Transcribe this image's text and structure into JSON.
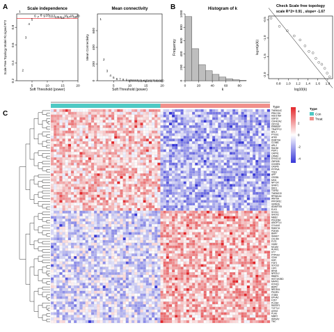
{
  "panel_letters": [
    "A",
    "B",
    "C"
  ],
  "chart_data": [
    {
      "type": "scatter",
      "title": "Scale independence",
      "xlabel": "Soft Threshold (power)",
      "ylabel": "Scale Free Topology Model Fit,signed R^2",
      "xlim": [
        0,
        20
      ],
      "ylim": [
        0.2,
        0.95
      ],
      "xticks": [
        "5",
        "10",
        "15",
        "20"
      ],
      "yticks": [
        "0.2",
        "0.4",
        "0.6",
        "0.8"
      ],
      "reference_line": 0.9,
      "marker_color": "#e6141b",
      "points": [
        {
          "x": 1,
          "y": 0.98
        },
        {
          "x": 2,
          "y": 0.32
        },
        {
          "x": 3,
          "y": 0.69
        },
        {
          "x": 4,
          "y": 0.84
        },
        {
          "x": 5,
          "y": 0.89
        },
        {
          "x": 6,
          "y": 0.93
        },
        {
          "x": 7,
          "y": 0.92
        },
        {
          "x": 8,
          "y": 0.94
        },
        {
          "x": 9,
          "y": 0.93
        },
        {
          "x": 10,
          "y": 0.94
        },
        {
          "x": 11,
          "y": 0.93
        },
        {
          "x": 12,
          "y": 0.93
        },
        {
          "x": 13,
          "y": 0.92
        },
        {
          "x": 14,
          "y": 0.92
        },
        {
          "x": 15,
          "y": 0.91
        },
        {
          "x": 16,
          "y": 0.93
        },
        {
          "x": 17,
          "y": 0.92
        },
        {
          "x": 18,
          "y": 0.93
        },
        {
          "x": 19,
          "y": 0.92
        },
        {
          "x": 20,
          "y": 0.93
        }
      ]
    },
    {
      "type": "scatter",
      "title": "Mean connectivity",
      "xlabel": "Soft Threshold (power)",
      "ylabel": "Mean Connectivity",
      "xlim": [
        0,
        20
      ],
      "ylim": [
        0,
        800
      ],
      "xticks": [
        "5",
        "10",
        "15",
        "20"
      ],
      "yticks": [
        "0",
        "200",
        "400",
        "600"
      ],
      "marker_color": "#e6141b",
      "points": [
        {
          "x": 1,
          "y": 740
        },
        {
          "x": 2,
          "y": 260
        },
        {
          "x": 3,
          "y": 120
        },
        {
          "x": 4,
          "y": 68
        },
        {
          "x": 5,
          "y": 40
        },
        {
          "x": 6,
          "y": 27
        },
        {
          "x": 7,
          "y": 20
        },
        {
          "x": 8,
          "y": 15
        },
        {
          "x": 9,
          "y": 12
        },
        {
          "x": 10,
          "y": 10
        },
        {
          "x": 11,
          "y": 8
        },
        {
          "x": 12,
          "y": 7
        },
        {
          "x": 13,
          "y": 6
        },
        {
          "x": 14,
          "y": 5
        },
        {
          "x": 15,
          "y": 5
        },
        {
          "x": 16,
          "y": 4
        },
        {
          "x": 17,
          "y": 4
        },
        {
          "x": 18,
          "y": 3
        },
        {
          "x": 19,
          "y": 3
        },
        {
          "x": 20,
          "y": 3
        }
      ]
    },
    {
      "type": "bar",
      "title": "Histogram of k",
      "xlabel": "k",
      "ylabel": "Frequency",
      "xlim": [
        0,
        90
      ],
      "ylim": [
        0,
        1000
      ],
      "xticks": [
        "0",
        "20",
        "40",
        "60",
        "80"
      ],
      "yticks": [
        "0",
        "200",
        "400",
        "600",
        "800",
        "1000"
      ],
      "bin_width": 10,
      "bins": [
        0,
        10,
        20,
        30,
        40,
        50,
        60,
        70,
        80
      ],
      "values": [
        960,
        480,
        240,
        150,
        95,
        55,
        30,
        15,
        5
      ],
      "bar_color": "#bebebe"
    },
    {
      "type": "scatter",
      "title": "Check Scale free topology",
      "subtitle": "scale R^2= 0.91 , slope= -1.67",
      "xlabel": "log10(k)",
      "ylabel": "log10(p(k))",
      "xlim": [
        0.6,
        1.9
      ],
      "ylim": [
        -2.1,
        -0.4
      ],
      "xticks": [
        "0.8",
        "1.0",
        "1.2",
        "1.4",
        "1.6",
        "1.8"
      ],
      "yticks": [
        "-2.0",
        "-1.5",
        "-1.0",
        "-0.5"
      ],
      "fit_line": {
        "slope": -1.67,
        "intercept": 0.82
      },
      "points": [
        {
          "x": 0.65,
          "y": -0.46
        },
        {
          "x": 0.82,
          "y": -0.68
        },
        {
          "x": 0.98,
          "y": -0.8
        },
        {
          "x": 1.12,
          "y": -0.94
        },
        {
          "x": 1.24,
          "y": -1.05
        },
        {
          "x": 1.34,
          "y": -1.21
        },
        {
          "x": 1.42,
          "y": -1.36
        },
        {
          "x": 1.5,
          "y": -1.4
        },
        {
          "x": 1.56,
          "y": -1.55
        },
        {
          "x": 1.62,
          "y": -1.66
        },
        {
          "x": 1.68,
          "y": -1.71
        },
        {
          "x": 1.74,
          "y": -1.82
        },
        {
          "x": 1.79,
          "y": -1.95
        },
        {
          "x": 1.84,
          "y": -2.05
        }
      ]
    },
    {
      "type": "heatmap",
      "annotation_label": "Type",
      "groups": [
        {
          "name": "Con",
          "color": "#4ec9c4",
          "n_samples": 38
        },
        {
          "name": "Treat",
          "color": "#f0908b",
          "n_samples": 38
        }
      ],
      "n_rows": 80,
      "row_clusters": [
        {
          "rows": 38,
          "con_level": 1.0,
          "treat_level": -1.4
        },
        {
          "rows": 42,
          "con_level": -0.8,
          "treat_level": 1.3
        }
      ],
      "colorbar": {
        "ticks": [
          "4",
          "2",
          "0",
          "-2",
          "-4"
        ],
        "high_color": "#e3262a",
        "mid_color": "#ffffff",
        "low_color": "#3636d8",
        "range": [
          -4,
          4
        ]
      },
      "gene_labels": [
        "TMEM14C",
        "PRKCSH",
        "HSD17B4",
        "USP10",
        "CSNK2A2",
        "CRYGS",
        "ERBB2IP",
        "TRAPPC2",
        "RPL7",
        "PTGS1",
        "ATRX",
        "DNMT3A",
        "CCNB1",
        "ARL2",
        "RAD50",
        "PSIP1",
        "CAPN1",
        "LPAR4",
        "DYNC1I2",
        "ZNF608",
        "CDK5R1",
        "CASP8",
        "PITPNA",
        "TFE3",
        "APP",
        "CREB1",
        "MSI1",
        "NPY1R",
        "SFRP1",
        "DKK1",
        "TGFB2",
        "TMEM219",
        "RPS6KA3",
        "WNT5A",
        "PPP2R5C",
        "GRIN2A",
        "ADAMTS5",
        "ELK3",
        "SOX11",
        "SHOX2",
        "MBD2",
        "PDGFRA",
        "ANGPTL4",
        "COL4A2",
        "RAB27A",
        "PDE4B",
        "BMP7",
        "SMAD7",
        "CXCR4",
        "FLT3",
        "GAB2",
        "MCAM",
        "RUNX1",
        "ST7",
        "PTPN12",
        "CD44",
        "KDR",
        "FGF2",
        "SOCS3",
        "LEF1",
        "RPS5",
        "NFE2L2",
        "RBBP4",
        "HIST1H2BD",
        "MAPK1",
        "KCNQ1",
        "BMP2",
        "NEDD4L",
        "PIK3R1",
        "ITGB5",
        "EPHA2",
        "FZD7",
        "PLCB4",
        "RASSF1",
        "TCF7L2",
        "AXIN2",
        "PLAU",
        "MMP2",
        "HMGA2",
        "TNC"
      ]
    }
  ]
}
